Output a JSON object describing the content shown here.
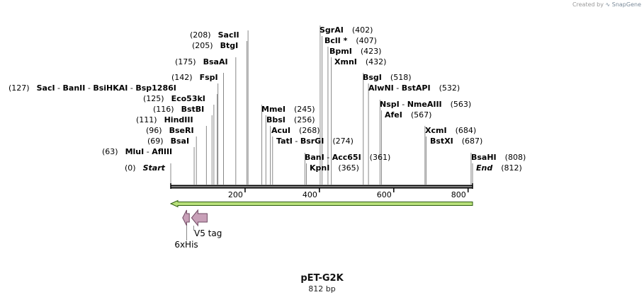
{
  "credit": {
    "prefix": "Created by",
    "brand": "SnapGene"
  },
  "plasmid": {
    "name": "pET-G2K",
    "size_label": "812 bp",
    "length": 812
  },
  "ruler": {
    "ticks": [
      200,
      400,
      600,
      800
    ]
  },
  "sites": [
    {
      "name": "Start",
      "pos": 0,
      "label": "(0)"
    },
    {
      "name": "MluI - AflIII",
      "pos": 63,
      "label": "(63)"
    },
    {
      "name": "BsaI",
      "pos": 69,
      "label": "(69)"
    },
    {
      "name": "BseRI",
      "pos": 96,
      "label": "(96)"
    },
    {
      "name": "HindIII",
      "pos": 111,
      "label": "(111)"
    },
    {
      "name": "BstBI",
      "pos": 116,
      "label": "(116)"
    },
    {
      "name": "Eco53kI",
      "pos": 125,
      "label": "(125)"
    },
    {
      "name": "SacI - BanII - BsiHKAI - Bsp1286I",
      "pos": 127,
      "label": "(127)"
    },
    {
      "name": "FspI",
      "pos": 142,
      "label": "(142)"
    },
    {
      "name": "BsaAI",
      "pos": 175,
      "label": "(175)"
    },
    {
      "name": "BtgI",
      "pos": 205,
      "label": "(205)"
    },
    {
      "name": "SacII",
      "pos": 208,
      "label": "(208)"
    },
    {
      "name": "MmeI",
      "pos": 245,
      "label": "(245)"
    },
    {
      "name": "BbsI",
      "pos": 256,
      "label": "(256)"
    },
    {
      "name": "AcuI",
      "pos": 268,
      "label": "(268)"
    },
    {
      "name": "TatI - BsrGI",
      "pos": 274,
      "label": "(274)"
    },
    {
      "name": "BanI - Acc65I",
      "pos": 361,
      "label": "(361)"
    },
    {
      "name": "KpnI",
      "pos": 365,
      "label": "(365)"
    },
    {
      "name": "SgrAI",
      "pos": 402,
      "label": "(402)"
    },
    {
      "name": "BclI *",
      "pos": 407,
      "label": "(407)"
    },
    {
      "name": "BpmI",
      "pos": 423,
      "label": "(423)"
    },
    {
      "name": "XmnI",
      "pos": 432,
      "label": "(432)"
    },
    {
      "name": "BsgI",
      "pos": 518,
      "label": "(518)"
    },
    {
      "name": "AlwNI - BstAPI",
      "pos": 532,
      "label": "(532)"
    },
    {
      "name": "NspI - NmeAIII",
      "pos": 563,
      "label": "(563)"
    },
    {
      "name": "AfeI",
      "pos": 567,
      "label": "(567)"
    },
    {
      "name": "XcmI",
      "pos": 684,
      "label": "(684)"
    },
    {
      "name": "BstXI",
      "pos": 687,
      "label": "(687)"
    },
    {
      "name": "BsaHI",
      "pos": 808,
      "label": "(808)"
    },
    {
      "name": "End",
      "pos": 812,
      "label": "(812)"
    }
  ],
  "features": [
    {
      "name": "insert-orf",
      "label": "",
      "start": 0,
      "end": 812,
      "direction": "reverse",
      "color": "#b8e07a",
      "border": "#2e5c10"
    },
    {
      "name": "6xHis",
      "label": "6xHis",
      "start": 32,
      "end": 50,
      "direction": "reverse",
      "color": "#c8a0b8",
      "border": "#6f4a62"
    },
    {
      "name": "V5 tag",
      "label": "V5 tag",
      "start": 56,
      "end": 98,
      "direction": "reverse",
      "color": "#c8a0b8",
      "border": "#6f4a62"
    }
  ],
  "colors": {
    "line": "#000000",
    "leader": "#888888"
  }
}
